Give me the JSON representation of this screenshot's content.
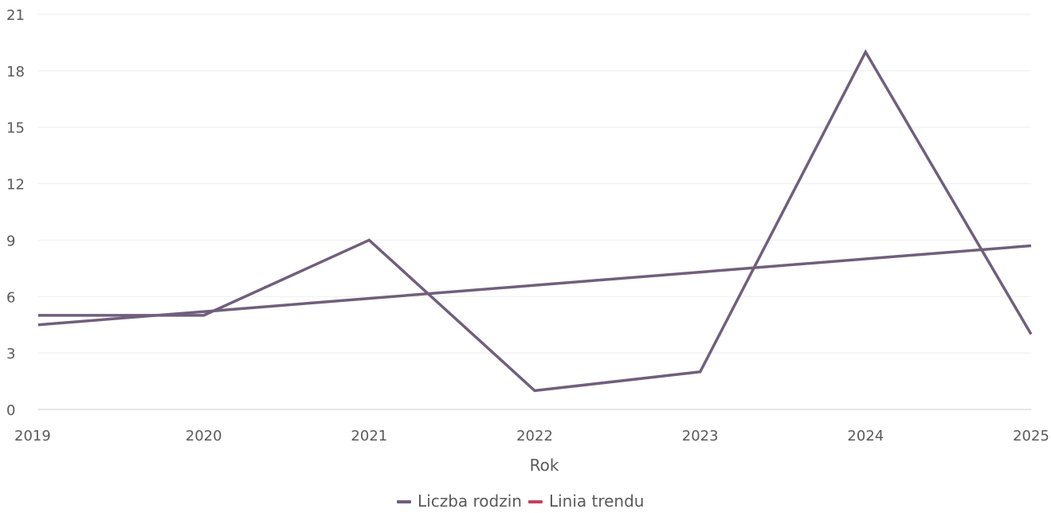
{
  "chart_data": {
    "type": "line",
    "title": "",
    "xlabel": "Rok",
    "ylabel": "",
    "x": [
      2019,
      2020,
      2021,
      2022,
      2023,
      2024,
      2025
    ],
    "xlim": [
      2019,
      2025
    ],
    "ylim": [
      0,
      21
    ],
    "yticks": [
      0,
      3,
      6,
      9,
      12,
      15,
      18,
      21
    ],
    "grid": true,
    "legend_position": "bottom-center",
    "series": [
      {
        "name": "Liczba rodzin",
        "values": [
          5,
          5,
          9,
          1,
          2,
          19,
          4
        ],
        "color": "#6f5f7c"
      },
      {
        "name": "Linia trendu",
        "values": [
          4.5,
          5.2,
          5.9,
          6.6,
          7.3,
          8.0,
          8.7
        ],
        "color": "#6f5f7c",
        "legend_color": "#c4425e"
      }
    ]
  }
}
